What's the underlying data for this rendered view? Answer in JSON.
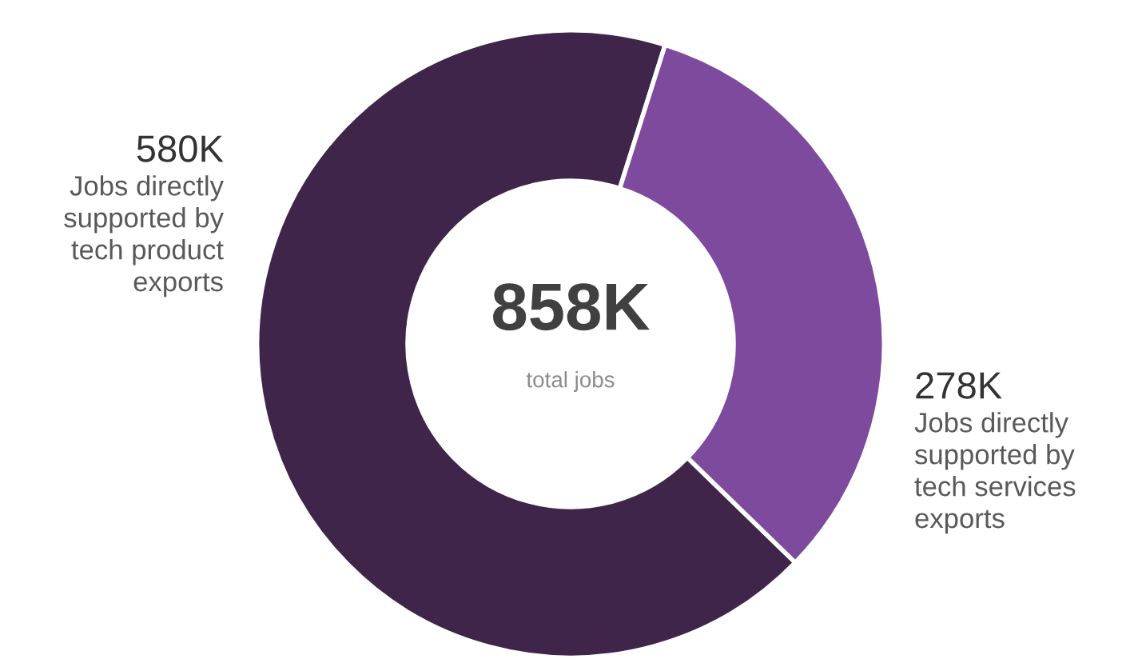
{
  "chart_data": {
    "type": "donut",
    "categories": [
      "Jobs directly supported by tech product exports",
      "Jobs directly supported by tech services exports"
    ],
    "values": [
      580,
      278
    ],
    "value_labels": [
      "580K",
      "278K"
    ],
    "colors": [
      "#3e2549",
      "#7e4a9e"
    ],
    "annotations": [
      "858K",
      "total jobs"
    ],
    "legend": false
  }
}
